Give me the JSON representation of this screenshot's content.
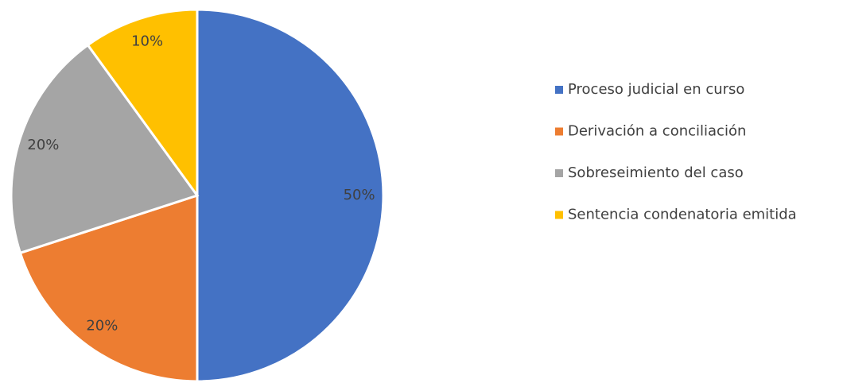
{
  "chart_data": {
    "type": "pie",
    "categories": [
      "Proceso judicial en curso",
      "Derivación a conciliación",
      "Sobreseimiento del caso",
      "Sentencia condenatoria emitida"
    ],
    "values": [
      50,
      20,
      20,
      10
    ],
    "value_labels": [
      "50%",
      "20%",
      "20%",
      "10%"
    ],
    "colors": [
      "#4472c4",
      "#ed7d31",
      "#a5a5a5",
      "#ffc000"
    ],
    "legend": "right"
  }
}
